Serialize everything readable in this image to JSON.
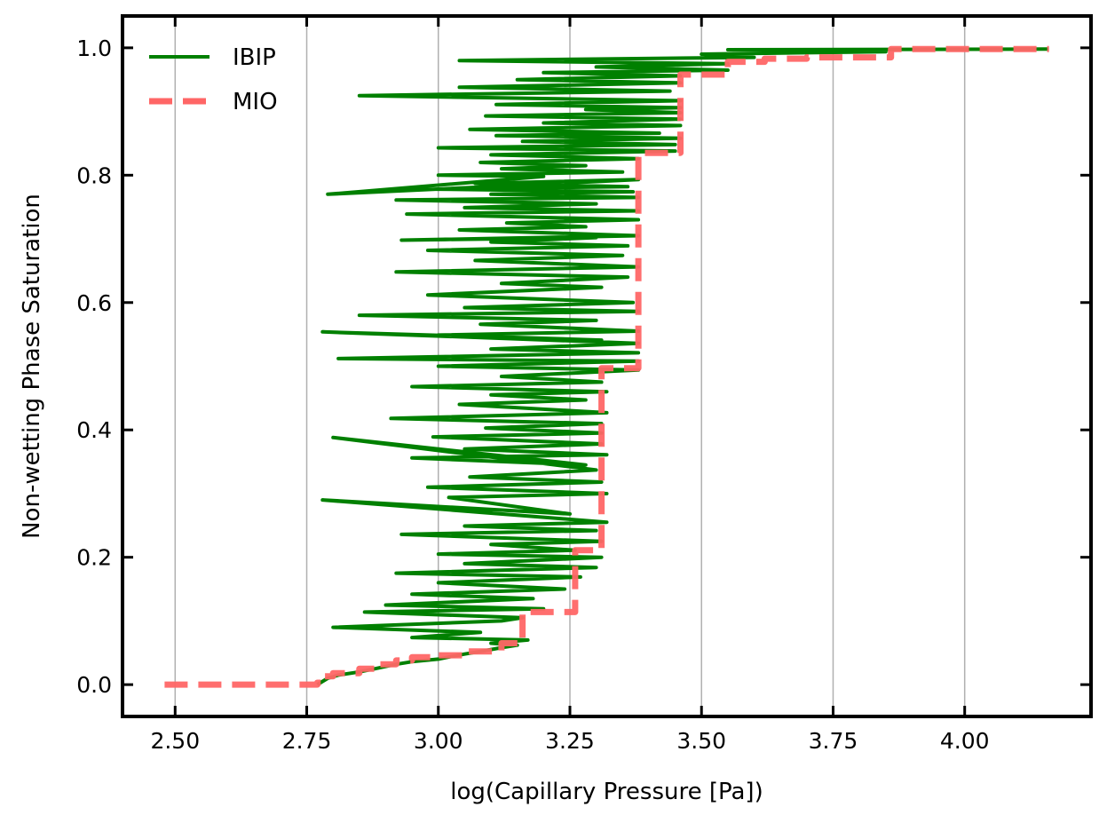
{
  "chart_data": {
    "type": "line",
    "xlabel": "log(Capillary Pressure [Pa])",
    "ylabel": "Non-wetting Phase Saturation",
    "xlim": [
      2.4,
      4.24
    ],
    "ylim": [
      -0.05,
      1.05
    ],
    "xticks": [
      2.5,
      2.75,
      3.0,
      3.25,
      3.5,
      3.75,
      4.0
    ],
    "xtick_labels": [
      "2.50",
      "2.75",
      "3.00",
      "3.25",
      "3.50",
      "3.75",
      "4.00"
    ],
    "yticks": [
      0.0,
      0.2,
      0.4,
      0.6,
      0.8,
      1.0
    ],
    "ytick_labels": [
      "0.0",
      "0.2",
      "0.4",
      "0.6",
      "0.8",
      "1.0"
    ],
    "grid": "vertical",
    "legend_position": "upper-left",
    "series": [
      {
        "name": "IBIP",
        "color": "#008000",
        "style": "solid",
        "x": [
          2.77,
          2.79,
          2.81,
          2.85,
          2.88,
          2.92,
          2.95,
          3.0,
          3.03,
          3.05,
          3.08,
          3.12,
          3.15,
          3.1,
          3.17,
          2.95,
          3.08,
          2.8,
          3.12,
          3.16,
          2.86,
          3.2,
          2.9,
          3.18,
          2.95,
          3.24,
          3.0,
          3.27,
          2.92,
          3.3,
          3.05,
          3.31,
          3.0,
          3.26,
          3.1,
          3.31,
          2.93,
          3.3,
          3.05,
          3.32,
          2.78,
          3.25,
          3.02,
          3.32,
          2.98,
          3.31,
          3.06,
          3.3,
          2.8,
          3.28,
          2.95,
          3.32,
          3.05,
          3.31,
          2.99,
          3.31,
          3.09,
          3.31,
          2.91,
          3.32,
          3.04,
          3.28,
          3.1,
          3.32,
          2.95,
          3.31,
          3.12,
          3.38,
          3.0,
          3.38,
          2.81,
          3.38,
          3.1,
          3.38,
          2.78,
          3.31,
          3.0,
          3.38,
          3.08,
          3.3,
          2.85,
          3.38,
          3.05,
          3.37,
          2.98,
          3.31,
          3.12,
          3.36,
          2.92,
          3.38,
          3.07,
          3.35,
          2.98,
          3.36,
          3.1,
          3.3,
          2.93,
          3.38,
          3.04,
          3.28,
          3.13,
          3.38,
          2.94,
          3.38,
          3.05,
          3.3,
          2.92,
          3.38,
          3.1,
          3.37,
          3.0,
          3.36,
          3.07,
          3.38,
          2.79,
          3.2,
          3.0,
          3.35,
          3.12,
          3.28,
          3.08,
          3.38,
          3.1,
          3.45,
          3.0,
          3.45,
          3.16,
          3.46,
          3.11,
          3.42,
          3.06,
          3.46,
          3.2,
          3.46,
          3.09,
          3.46,
          3.28,
          3.46,
          3.11,
          3.46,
          2.85,
          3.44,
          3.04,
          3.46,
          3.15,
          3.46,
          3.2,
          3.55,
          3.3,
          3.55,
          3.04,
          3.6,
          3.5,
          3.85,
          3.55,
          4.16
        ],
        "y": [
          0.0,
          0.01,
          0.015,
          0.02,
          0.025,
          0.032,
          0.036,
          0.04,
          0.045,
          0.048,
          0.052,
          0.058,
          0.062,
          0.065,
          0.07,
          0.074,
          0.082,
          0.09,
          0.1,
          0.105,
          0.114,
          0.119,
          0.125,
          0.135,
          0.142,
          0.15,
          0.16,
          0.169,
          0.175,
          0.184,
          0.19,
          0.2,
          0.205,
          0.211,
          0.22,
          0.225,
          0.236,
          0.242,
          0.249,
          0.255,
          0.29,
          0.268,
          0.294,
          0.3,
          0.31,
          0.318,
          0.326,
          0.337,
          0.388,
          0.345,
          0.356,
          0.361,
          0.37,
          0.378,
          0.389,
          0.395,
          0.403,
          0.41,
          0.418,
          0.427,
          0.44,
          0.447,
          0.455,
          0.46,
          0.468,
          0.475,
          0.484,
          0.494,
          0.5,
          0.508,
          0.512,
          0.521,
          0.527,
          0.536,
          0.554,
          0.541,
          0.549,
          0.555,
          0.566,
          0.572,
          0.58,
          0.586,
          0.592,
          0.6,
          0.612,
          0.624,
          0.63,
          0.64,
          0.648,
          0.656,
          0.666,
          0.674,
          0.682,
          0.689,
          0.695,
          0.702,
          0.698,
          0.705,
          0.714,
          0.719,
          0.725,
          0.73,
          0.739,
          0.744,
          0.749,
          0.755,
          0.761,
          0.765,
          0.77,
          0.774,
          0.778,
          0.782,
          0.787,
          0.793,
          0.77,
          0.798,
          0.8,
          0.805,
          0.81,
          0.815,
          0.82,
          0.826,
          0.832,
          0.838,
          0.843,
          0.848,
          0.853,
          0.858,
          0.862,
          0.866,
          0.872,
          0.878,
          0.882,
          0.888,
          0.893,
          0.898,
          0.903,
          0.906,
          0.911,
          0.917,
          0.925,
          0.932,
          0.938,
          0.945,
          0.95,
          0.956,
          0.961,
          0.965,
          0.97,
          0.975,
          0.98,
          0.985,
          0.99,
          0.994,
          0.997,
          0.998
        ]
      },
      {
        "name": "MIO",
        "color": "#ff6666",
        "style": "dashed",
        "x": [
          2.48,
          2.77,
          2.77,
          2.78,
          2.78,
          2.8,
          2.8,
          2.85,
          2.85,
          2.89,
          2.89,
          2.92,
          2.92,
          2.95,
          2.95,
          3.0,
          3.0,
          3.05,
          3.05,
          3.12,
          3.12,
          3.16,
          3.16,
          3.26,
          3.26,
          3.31,
          3.31,
          3.38,
          3.38,
          3.46,
          3.46,
          3.55,
          3.55,
          3.62,
          3.62,
          3.7,
          3.7,
          3.86,
          3.86,
          4.16
        ],
        "y": [
          0.0,
          0.0,
          0.003,
          0.003,
          0.013,
          0.013,
          0.018,
          0.018,
          0.025,
          0.025,
          0.032,
          0.032,
          0.038,
          0.038,
          0.043,
          0.043,
          0.046,
          0.046,
          0.052,
          0.052,
          0.065,
          0.065,
          0.114,
          0.114,
          0.211,
          0.211,
          0.497,
          0.497,
          0.835,
          0.835,
          0.958,
          0.958,
          0.978,
          0.978,
          0.983,
          0.983,
          0.985,
          0.985,
          0.998,
          0.998
        ]
      }
    ]
  }
}
